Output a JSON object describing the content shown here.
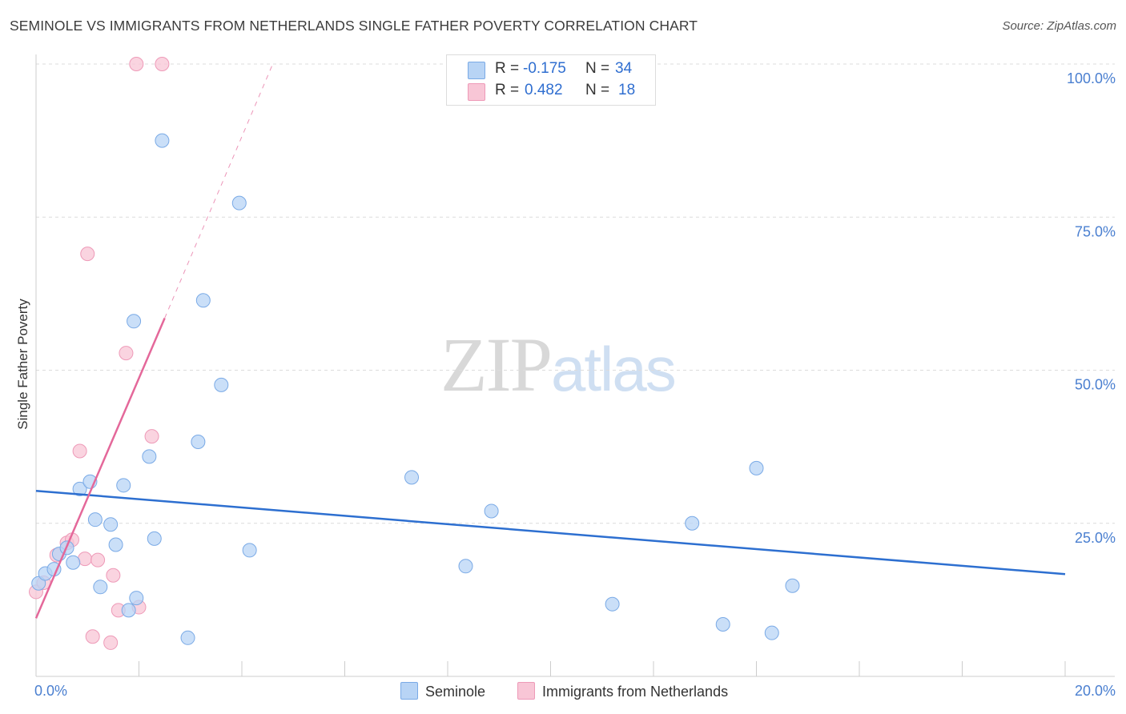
{
  "header": {
    "title": "SEMINOLE VS IMMIGRANTS FROM NETHERLANDS SINGLE FATHER POVERTY CORRELATION CHART",
    "source": "Source: ZipAtlas.com"
  },
  "watermark": {
    "zip": "ZIP",
    "atlas": "atlas"
  },
  "legend": {
    "rows": [
      {
        "r_label": "R =",
        "r_value": "-0.175",
        "n_label": "N =",
        "n_value": "34"
      },
      {
        "r_label": "R =",
        "r_value": "0.482",
        "n_label": "N =",
        "n_value": "18"
      }
    ],
    "bottom": [
      "Seminole",
      "Immigrants from Netherlands"
    ]
  },
  "colors": {
    "seminole_fill": "#b8d4f5",
    "seminole_stroke": "#7aaae6",
    "seminole_line": "#2d6fd0",
    "netherlands_fill": "#f8c6d6",
    "netherlands_stroke": "#ee9ab8",
    "netherlands_line": "#e4689a",
    "grid": "#dcdcdc",
    "tick_text": "#4a7fd0"
  },
  "chart_data": {
    "type": "scatter",
    "title": "SEMINOLE VS IMMIGRANTS FROM NETHERLANDS SINGLE FATHER POVERTY CORRELATION CHART",
    "xlabel": "",
    "ylabel": "Single Father Poverty",
    "xlim": [
      0,
      20
    ],
    "ylim": [
      0,
      100
    ],
    "x_tick_labels": [
      "0.0%",
      "20.0%"
    ],
    "y_ticks": [
      25,
      50,
      75,
      100
    ],
    "y_tick_labels": [
      "25.0%",
      "50.0%",
      "75.0%",
      "100.0%"
    ],
    "grid": true,
    "series": [
      {
        "name": "Seminole",
        "R": -0.175,
        "N": 34,
        "trend": {
          "x0": 0,
          "y0": 30.3,
          "x1": 20,
          "y1": 16.7
        },
        "points": [
          [
            0.05,
            15.2
          ],
          [
            0.18,
            16.8
          ],
          [
            0.35,
            17.5
          ],
          [
            0.45,
            20.0
          ],
          [
            0.6,
            21.0
          ],
          [
            0.72,
            18.6
          ],
          [
            0.85,
            30.6
          ],
          [
            1.05,
            31.8
          ],
          [
            1.15,
            25.6
          ],
          [
            1.45,
            24.8
          ],
          [
            1.55,
            21.5
          ],
          [
            1.25,
            14.6
          ],
          [
            1.7,
            31.2
          ],
          [
            1.8,
            10.8
          ],
          [
            1.95,
            12.8
          ],
          [
            1.9,
            58.0
          ],
          [
            2.2,
            35.9
          ],
          [
            2.3,
            22.5
          ],
          [
            2.45,
            87.5
          ],
          [
            2.95,
            6.3
          ],
          [
            3.15,
            38.3
          ],
          [
            3.25,
            61.4
          ],
          [
            3.6,
            47.6
          ],
          [
            3.95,
            77.3
          ],
          [
            4.15,
            20.6
          ],
          [
            7.3,
            32.5
          ],
          [
            8.35,
            18.0
          ],
          [
            8.85,
            27.0
          ],
          [
            11.2,
            11.8
          ],
          [
            12.75,
            25.0
          ],
          [
            13.35,
            8.5
          ],
          [
            14.0,
            34.0
          ],
          [
            14.3,
            7.1
          ],
          [
            14.7,
            14.8
          ]
        ]
      },
      {
        "name": "Immigrants from Netherlands",
        "R": 0.482,
        "N": 18,
        "trend": {
          "x0": 0,
          "y0": 9.5,
          "x1": 2.5,
          "y1": 58.5
        },
        "trend_dashed": {
          "x0": 2.5,
          "y0": 58.5,
          "x1": 4.6,
          "y1": 100
        },
        "points": [
          [
            0.0,
            13.8
          ],
          [
            0.15,
            15.3
          ],
          [
            0.4,
            19.8
          ],
          [
            0.6,
            21.8
          ],
          [
            0.7,
            22.3
          ],
          [
            0.95,
            19.2
          ],
          [
            0.85,
            36.8
          ],
          [
            1.0,
            69.0
          ],
          [
            1.1,
            6.5
          ],
          [
            1.2,
            19.0
          ],
          [
            1.45,
            5.5
          ],
          [
            1.5,
            16.5
          ],
          [
            1.6,
            10.8
          ],
          [
            1.75,
            52.8
          ],
          [
            2.0,
            11.3
          ],
          [
            2.25,
            39.2
          ],
          [
            1.95,
            100
          ],
          [
            2.45,
            100
          ]
        ]
      }
    ]
  }
}
